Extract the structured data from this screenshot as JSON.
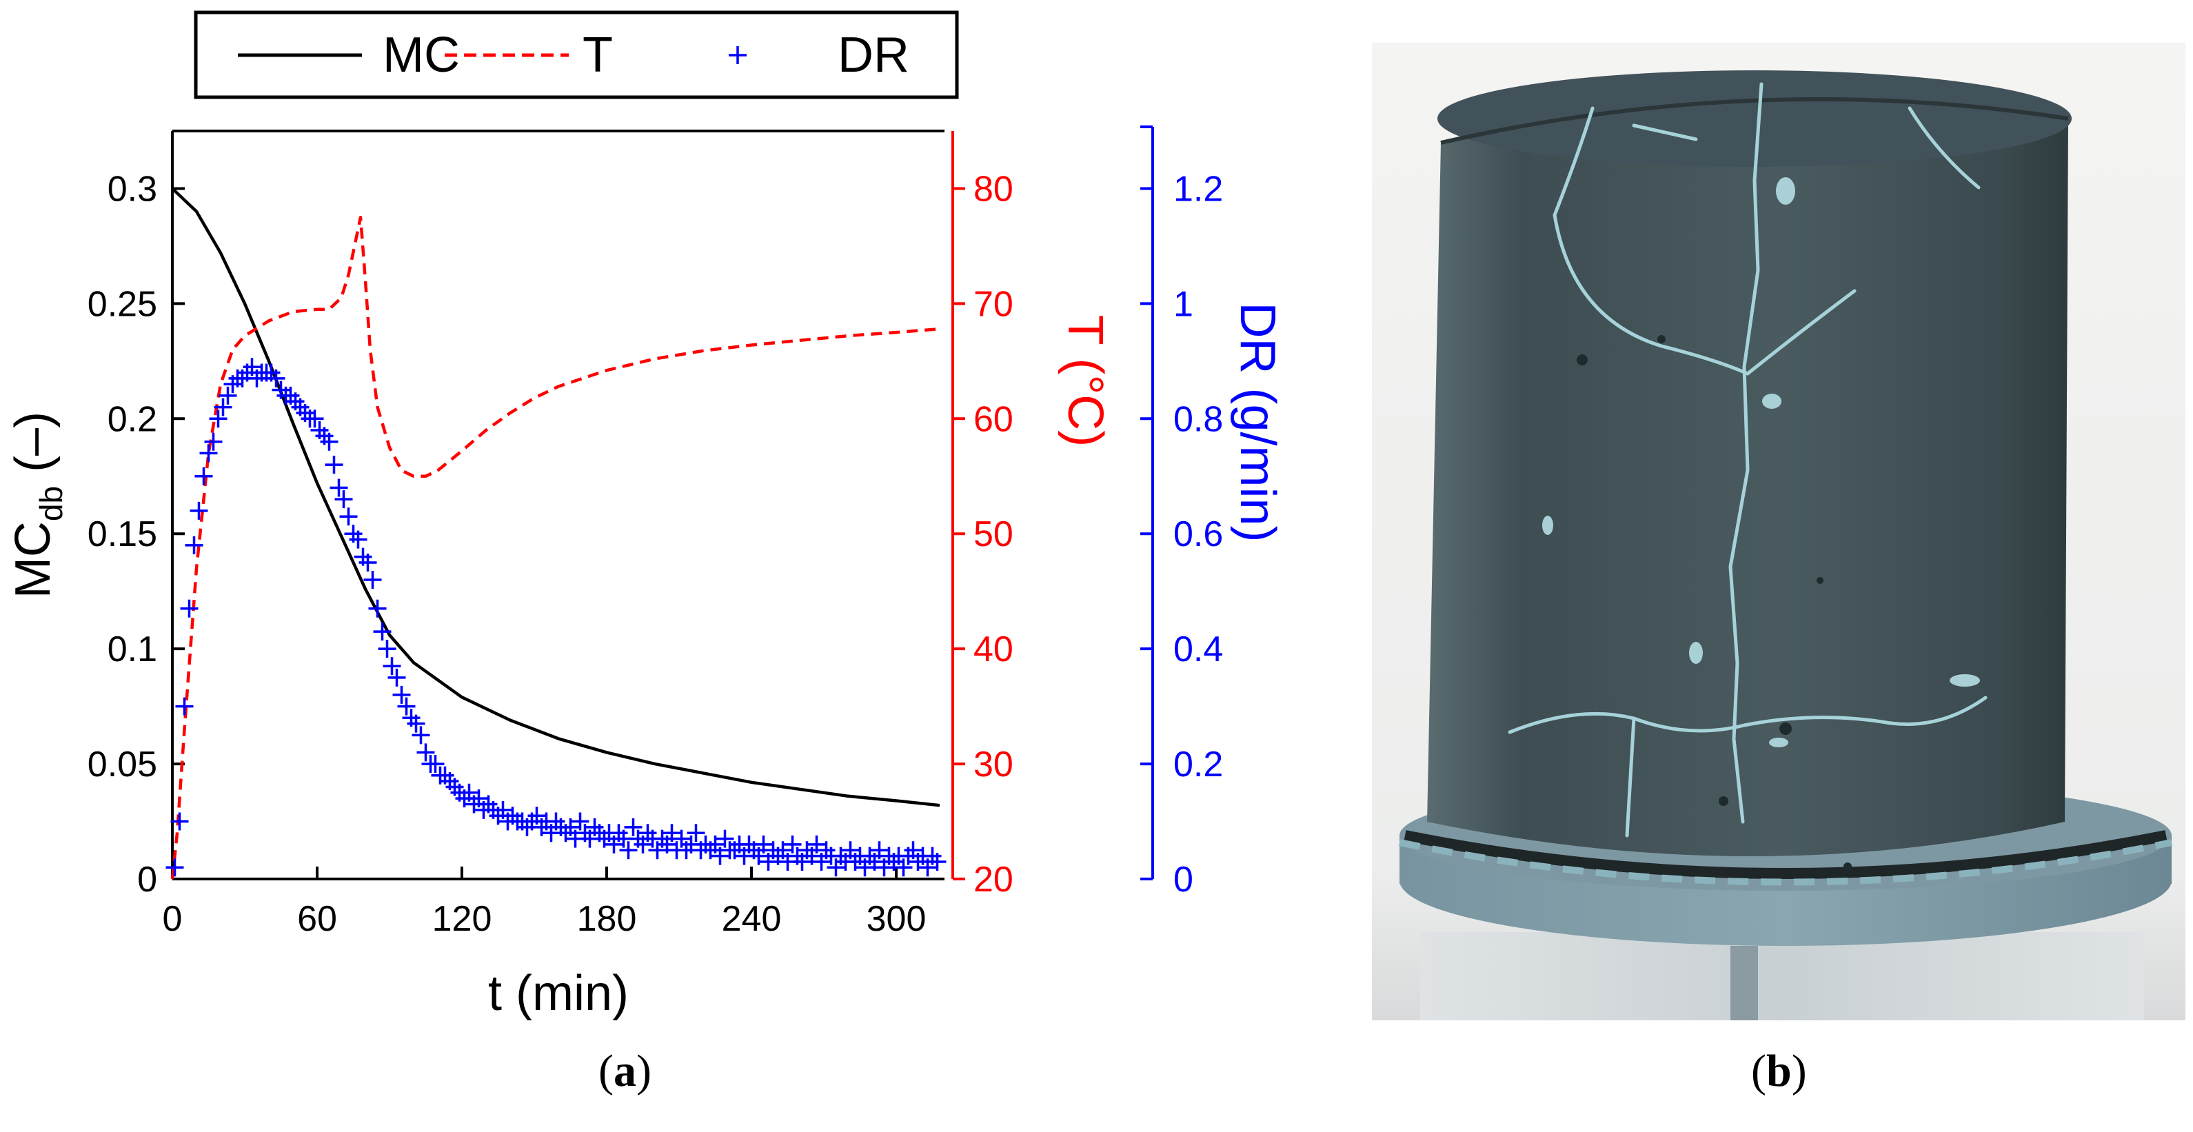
{
  "chart_data": {
    "type": "line",
    "panel_label": "a",
    "legend": {
      "placement": "top",
      "entries": [
        "MC",
        "T",
        "DR"
      ]
    },
    "x_axis": {
      "label": "t (min)",
      "lim": [
        0,
        320
      ],
      "ticks": [
        0,
        60,
        120,
        180,
        240,
        300
      ]
    },
    "y_axes": [
      {
        "id": "mc",
        "label_main": "MC",
        "label_sub": "db",
        "label_tail": " (–)",
        "lim": [
          0,
          0.325
        ],
        "ticks": [
          0,
          0.05,
          0.1,
          0.15,
          0.2,
          0.25,
          0.3
        ],
        "tick_labels": [
          "0",
          "0.05",
          "0.1",
          "0.15",
          "0.2",
          "0.25",
          "0.3"
        ],
        "color": "#000000"
      },
      {
        "id": "t",
        "label": "T (°C)",
        "lim": [
          20,
          85
        ],
        "ticks": [
          20,
          30,
          40,
          50,
          60,
          70,
          80
        ],
        "tick_labels": [
          "20",
          "30",
          "40",
          "50",
          "60",
          "70",
          "80"
        ],
        "color": "#ff0000"
      },
      {
        "id": "dr",
        "label": "DR (g/min)",
        "lim": [
          0,
          1.3
        ],
        "ticks": [
          0,
          0.2,
          0.4,
          0.6,
          0.8,
          1.0,
          1.2
        ],
        "tick_labels": [
          "0",
          "0.2",
          "0.4",
          "0.6",
          "0.8",
          "1",
          "1.2"
        ],
        "color": "#0000ff"
      }
    ],
    "series": [
      {
        "name": "MC",
        "axis": "mc",
        "style": "solid",
        "color": "#000000",
        "x": [
          0,
          10,
          20,
          30,
          40,
          50,
          60,
          70,
          80,
          90,
          100,
          120,
          140,
          160,
          180,
          200,
          220,
          240,
          260,
          280,
          300,
          318
        ],
        "y": [
          0.3,
          0.29,
          0.272,
          0.25,
          0.225,
          0.198,
          0.172,
          0.149,
          0.126,
          0.106,
          0.094,
          0.079,
          0.069,
          0.061,
          0.055,
          0.05,
          0.046,
          0.042,
          0.039,
          0.036,
          0.034,
          0.032
        ]
      },
      {
        "name": "T",
        "axis": "t",
        "style": "dashed",
        "color": "#ff0000",
        "x": [
          0,
          2,
          5,
          10,
          15,
          20,
          25,
          30,
          40,
          50,
          60,
          65,
          70,
          73,
          76,
          78,
          80,
          82,
          85,
          90,
          95,
          100,
          105,
          110,
          120,
          130,
          140,
          150,
          160,
          180,
          200,
          220,
          240,
          260,
          280,
          300,
          318
        ],
        "y": [
          20,
          24,
          33,
          47,
          57,
          63,
          66,
          67.2,
          68.5,
          69.3,
          69.5,
          69.5,
          70.5,
          72.5,
          75.5,
          77.5,
          72.0,
          66,
          61,
          57.5,
          55.5,
          55.0,
          55.0,
          55.5,
          57.2,
          59.0,
          60.5,
          61.8,
          62.8,
          64.2,
          65.2,
          65.9,
          66.4,
          66.8,
          67.2,
          67.5,
          67.8
        ]
      },
      {
        "name": "DR",
        "axis": "dr",
        "style": "markers",
        "color": "#0000ff",
        "x": [
          1,
          3,
          5,
          7,
          9,
          11,
          13,
          15,
          17,
          19,
          21,
          23,
          25,
          27,
          29,
          31,
          33,
          35,
          37,
          39,
          41,
          43,
          45,
          47,
          49,
          51,
          53,
          55,
          57,
          59,
          61,
          63,
          65,
          67,
          69,
          71,
          73,
          75,
          77,
          79,
          81,
          83,
          85,
          87,
          89,
          91,
          93,
          95,
          97,
          99,
          101,
          103,
          105,
          107,
          109,
          111,
          113,
          115,
          117,
          119,
          121,
          123,
          125,
          127,
          129,
          131,
          133,
          135,
          137,
          139,
          141,
          143,
          145,
          147,
          149,
          151,
          153,
          155,
          157,
          159,
          161,
          163,
          165,
          167,
          169,
          171,
          173,
          175,
          177,
          179,
          181,
          183,
          185,
          187,
          189,
          191,
          193,
          195,
          197,
          199,
          201,
          203,
          205,
          207,
          209,
          211,
          213,
          215,
          217,
          219,
          221,
          223,
          225,
          227,
          229,
          231,
          233,
          235,
          237,
          239,
          241,
          243,
          245,
          247,
          249,
          251,
          253,
          255,
          257,
          259,
          261,
          263,
          265,
          267,
          269,
          271,
          273,
          275,
          277,
          279,
          281,
          283,
          285,
          287,
          289,
          291,
          293,
          295,
          297,
          299,
          301,
          303,
          305,
          307,
          309,
          311,
          313,
          315,
          317
        ],
        "y": [
          0.02,
          0.1,
          0.3,
          0.47,
          0.58,
          0.64,
          0.7,
          0.74,
          0.76,
          0.8,
          0.82,
          0.84,
          0.86,
          0.87,
          0.87,
          0.88,
          0.89,
          0.87,
          0.88,
          0.88,
          0.88,
          0.87,
          0.85,
          0.84,
          0.84,
          0.83,
          0.82,
          0.81,
          0.8,
          0.8,
          0.78,
          0.77,
          0.76,
          0.72,
          0.68,
          0.66,
          0.63,
          0.6,
          0.59,
          0.56,
          0.55,
          0.52,
          0.47,
          0.43,
          0.4,
          0.37,
          0.35,
          0.32,
          0.3,
          0.28,
          0.27,
          0.25,
          0.22,
          0.2,
          0.2,
          0.18,
          0.18,
          0.17,
          0.16,
          0.15,
          0.14,
          0.15,
          0.13,
          0.14,
          0.12,
          0.13,
          0.12,
          0.11,
          0.12,
          0.1,
          0.11,
          0.1,
          0.1,
          0.09,
          0.1,
          0.11,
          0.09,
          0.1,
          0.08,
          0.1,
          0.09,
          0.08,
          0.09,
          0.07,
          0.1,
          0.08,
          0.07,
          0.09,
          0.08,
          0.07,
          0.08,
          0.06,
          0.08,
          0.07,
          0.05,
          0.09,
          0.07,
          0.06,
          0.08,
          0.07,
          0.05,
          0.07,
          0.06,
          0.08,
          0.05,
          0.07,
          0.05,
          0.06,
          0.08,
          0.05,
          0.06,
          0.05,
          0.06,
          0.04,
          0.07,
          0.05,
          0.05,
          0.06,
          0.04,
          0.06,
          0.05,
          0.04,
          0.06,
          0.03,
          0.05,
          0.04,
          0.05,
          0.03,
          0.06,
          0.04,
          0.03,
          0.05,
          0.04,
          0.06,
          0.03,
          0.05,
          0.04,
          0.02,
          0.04,
          0.03,
          0.05,
          0.03,
          0.04,
          0.02,
          0.04,
          0.03,
          0.05,
          0.02,
          0.04,
          0.03,
          0.04,
          0.02,
          0.04,
          0.05,
          0.03,
          0.04,
          0.02,
          0.04,
          0.03
        ]
      }
    ]
  },
  "photo": {
    "label": "b",
    "description_icon": "dried-clay-cylinder-photo",
    "colors": {
      "body": "#3e4e52",
      "body_dark": "#2b3639",
      "crack": "#a6d2d9",
      "ring": "#6f8c96",
      "background": "#f2f2f0"
    }
  }
}
